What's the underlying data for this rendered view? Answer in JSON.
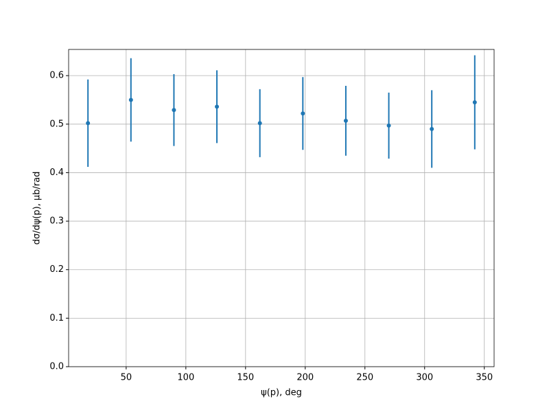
{
  "chart_data": {
    "type": "errorbar",
    "x_label": "ψ(p), deg",
    "y_label": "dσ/dψ(p), μb/rad",
    "x": [
      18,
      54,
      90,
      126,
      162,
      198,
      234,
      270,
      306,
      342
    ],
    "values": [
      0.502,
      0.55,
      0.529,
      0.536,
      0.502,
      0.522,
      0.507,
      0.497,
      0.49,
      0.545
    ],
    "errors": [
      0.09,
      0.086,
      0.074,
      0.075,
      0.07,
      0.075,
      0.072,
      0.068,
      0.08,
      0.097
    ],
    "color": "#1f77b4",
    "xlim": [
      1.8,
      358.2
    ],
    "ylim": [
      0,
      0.654
    ],
    "xticks": [
      50,
      100,
      150,
      200,
      250,
      300,
      350
    ],
    "yticks": [
      {
        "value": 0,
        "label": "0.0"
      },
      0.1,
      0.2,
      0.3,
      0.4,
      0.5,
      0.6
    ],
    "grid": true
  }
}
